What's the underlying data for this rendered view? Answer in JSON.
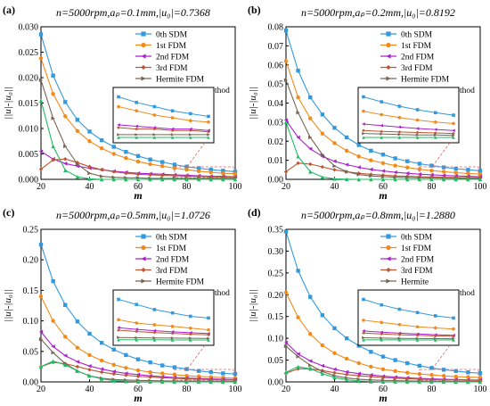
{
  "chart_data": [
    {
      "type": "line",
      "panel_label": "(a)",
      "title": "n=5000rpm,aₚ=0.1mm,|u₀|=0.7368",
      "xlabel": "m",
      "ylabel": "||u|-|u₀||",
      "xlim": [
        20,
        100
      ],
      "ylim": [
        0,
        0.03
      ],
      "xticks": [
        "20",
        "40",
        "60",
        "80",
        "100"
      ],
      "yticks": [
        "0.000",
        "0.005",
        "0.010",
        "0.015",
        "0.020",
        "0.025",
        "0.030"
      ],
      "legend_position": "top-right",
      "x": [
        20,
        25,
        30,
        35,
        40,
        45,
        50,
        55,
        60,
        65,
        70,
        75,
        80,
        85,
        90,
        95,
        100
      ],
      "series": [
        {
          "name": "0th SDM",
          "color": "#3399dd",
          "marker": "square",
          "values": [
            0.0285,
            0.0204,
            0.0152,
            0.0117,
            0.0094,
            0.0077,
            0.0064,
            0.0054,
            0.0046,
            0.0039,
            0.0034,
            0.0029,
            0.0025,
            0.0022,
            0.0019,
            0.0017,
            0.0015
          ]
        },
        {
          "name": "1st FDM",
          "color": "#f08a1a",
          "marker": "circle",
          "values": [
            0.0238,
            0.0168,
            0.0124,
            0.0095,
            0.0075,
            0.0061,
            0.005,
            0.0042,
            0.0035,
            0.003,
            0.0026,
            0.0022,
            0.0019,
            0.0016,
            0.0014,
            0.0012,
            0.0011
          ]
        },
        {
          "name": "2nd FDM",
          "color": "#aa22cc",
          "marker": "triangle-left",
          "values": [
            0.0055,
            0.004,
            0.0031,
            0.0026,
            0.0022,
            0.0019,
            0.0016,
            0.0014,
            0.0012,
            0.0011,
            0.001,
            0.0009,
            0.0008,
            0.0007,
            0.0006,
            0.0006,
            0.0005
          ]
        },
        {
          "name": "3rd FDM",
          "color": "#bb5533",
          "marker": "diamond",
          "values": [
            0.002,
            0.0038,
            0.004,
            0.0033,
            0.0025,
            0.0019,
            0.0015,
            0.0012,
            0.001,
            0.0009,
            0.0008,
            0.0007,
            0.0006,
            0.0006,
            0.0005,
            0.0005,
            0.0004
          ]
        },
        {
          "name": "Hermite FDM",
          "color": "#776655",
          "marker": "triangle-right",
          "values": [
            0.0195,
            0.012,
            0.0065,
            0.003,
            0.0012,
            0.0006,
            0.0004,
            0.0003,
            0.0003,
            0.0002,
            0.0002,
            0.0002,
            0.0002,
            0.0002,
            0.0002,
            0.0002,
            0.0002
          ]
        },
        {
          "name": "The proposed method",
          "color": "#22bb66",
          "marker": "triangle-up",
          "values": [
            0.0155,
            0.0065,
            0.0018,
            0.0005,
            0.0001,
            0.0,
            0.0,
            0.0,
            0.0,
            0.0,
            0.0,
            0.0,
            0.0,
            0.0,
            0.0,
            0.0,
            0.0
          ]
        }
      ]
    },
    {
      "type": "line",
      "panel_label": "(b)",
      "title": "n=5000rpm,aₚ=0.2mm,|u₀|=0.8192",
      "xlabel": "m",
      "ylabel": "||u|-|u₀||",
      "xlim": [
        20,
        100
      ],
      "ylim": [
        0,
        0.08
      ],
      "xticks": [
        "20",
        "40",
        "60",
        "80",
        "100"
      ],
      "yticks": [
        "0.00",
        "0.01",
        "0.02",
        "0.03",
        "0.04",
        "0.05",
        "0.06",
        "0.07",
        "0.08"
      ],
      "legend_position": "top-right",
      "x": [
        20,
        25,
        30,
        35,
        40,
        45,
        50,
        55,
        60,
        65,
        70,
        75,
        80,
        85,
        90,
        95,
        100
      ],
      "series": [
        {
          "name": "0th SDM",
          "color": "#3399dd",
          "marker": "square",
          "values": [
            0.078,
            0.057,
            0.043,
            0.034,
            0.027,
            0.022,
            0.018,
            0.015,
            0.013,
            0.011,
            0.0095,
            0.0082,
            0.0072,
            0.0063,
            0.0056,
            0.005,
            0.0045
          ]
        },
        {
          "name": "1st FDM",
          "color": "#f08a1a",
          "marker": "circle",
          "values": [
            0.062,
            0.043,
            0.032,
            0.024,
            0.019,
            0.015,
            0.012,
            0.01,
            0.0085,
            0.0072,
            0.0062,
            0.0053,
            0.0046,
            0.004,
            0.0035,
            0.0031,
            0.0028
          ]
        },
        {
          "name": "2nd FDM",
          "color": "#aa22cc",
          "marker": "triangle-left",
          "values": [
            0.031,
            0.022,
            0.016,
            0.012,
            0.0095,
            0.0077,
            0.0063,
            0.0052,
            0.0044,
            0.0037,
            0.0032,
            0.0027,
            0.0024,
            0.0021,
            0.0018,
            0.0016,
            0.0014
          ]
        },
        {
          "name": "3rd FDM",
          "color": "#bb5533",
          "marker": "diamond",
          "values": [
            0.004,
            0.0085,
            0.008,
            0.0065,
            0.005,
            0.004,
            0.0032,
            0.0026,
            0.0022,
            0.0018,
            0.0016,
            0.0014,
            0.0012,
            0.0011,
            0.001,
            0.0009,
            0.0008
          ]
        },
        {
          "name": "Hermite FDM",
          "color": "#776655",
          "marker": "triangle-right",
          "values": [
            0.052,
            0.035,
            0.022,
            0.013,
            0.007,
            0.004,
            0.0025,
            0.0018,
            0.0014,
            0.0011,
            0.0009,
            0.0008,
            0.0007,
            0.0006,
            0.0005,
            0.0005,
            0.0004
          ]
        },
        {
          "name": "The proposed method",
          "color": "#22bb66",
          "marker": "triangle-up",
          "values": [
            0.03,
            0.012,
            0.004,
            0.0012,
            0.0003,
            0.0001,
            0.0,
            0.0,
            0.0,
            0.0,
            0.0,
            0.0,
            0.0,
            0.0,
            0.0,
            0.0,
            0.0
          ]
        }
      ]
    },
    {
      "type": "line",
      "panel_label": "(c)",
      "title": "n=5000rpm,aₚ=0.5mm,|u₀|=1.0726",
      "xlabel": "m",
      "ylabel": "||u|-|u₀||",
      "xlim": [
        20,
        100
      ],
      "ylim": [
        0,
        0.25
      ],
      "xticks": [
        "20",
        "40",
        "60",
        "80",
        "100"
      ],
      "yticks": [
        "0.00",
        "0.05",
        "0.10",
        "0.15",
        "0.20",
        "0.25"
      ],
      "legend_position": "top-right",
      "x": [
        20,
        25,
        30,
        35,
        40,
        45,
        50,
        55,
        60,
        65,
        70,
        75,
        80,
        85,
        90,
        95,
        100
      ],
      "series": [
        {
          "name": "0th SDM",
          "color": "#3399dd",
          "marker": "square",
          "values": [
            0.225,
            0.165,
            0.126,
            0.099,
            0.079,
            0.064,
            0.053,
            0.044,
            0.037,
            0.032,
            0.027,
            0.024,
            0.021,
            0.018,
            0.016,
            0.014,
            0.013
          ]
        },
        {
          "name": "1st FDM",
          "color": "#f08a1a",
          "marker": "circle",
          "values": [
            0.14,
            0.1,
            0.074,
            0.056,
            0.044,
            0.035,
            0.028,
            0.023,
            0.019,
            0.016,
            0.014,
            0.012,
            0.01,
            0.009,
            0.008,
            0.007,
            0.006
          ]
        },
        {
          "name": "2nd FDM",
          "color": "#aa22cc",
          "marker": "triangle-left",
          "values": [
            0.082,
            0.058,
            0.043,
            0.033,
            0.026,
            0.021,
            0.017,
            0.014,
            0.012,
            0.01,
            0.0085,
            0.0073,
            0.0063,
            0.0055,
            0.0048,
            0.0043,
            0.0038
          ]
        },
        {
          "name": "3rd FDM",
          "color": "#bb5533",
          "marker": "diamond",
          "values": [
            0.025,
            0.032,
            0.03,
            0.025,
            0.02,
            0.016,
            0.013,
            0.011,
            0.009,
            0.008,
            0.0068,
            0.0058,
            0.005,
            0.0044,
            0.0039,
            0.0034,
            0.003
          ]
        },
        {
          "name": "Hermite FDM",
          "color": "#776655",
          "marker": "triangle-right",
          "values": [
            0.07,
            0.048,
            0.03,
            0.018,
            0.01,
            0.006,
            0.004,
            0.003,
            0.0025,
            0.002,
            0.0017,
            0.0015,
            0.0013,
            0.0012,
            0.0011,
            0.001,
            0.0009
          ]
        },
        {
          "name": "The proposed method",
          "color": "#22bb66",
          "marker": "triangle-up",
          "values": [
            0.025,
            0.034,
            0.028,
            0.018,
            0.01,
            0.005,
            0.002,
            0.001,
            0.0005,
            0.0003,
            0.0002,
            0.0001,
            0.0001,
            0.0001,
            0.0,
            0.0,
            0.0
          ]
        }
      ]
    },
    {
      "type": "line",
      "panel_label": "(d)",
      "title": "n=5000rpm,aₚ=0.8mm,|u₀|=1.2880",
      "xlabel": "m",
      "ylabel": "||u|-|u₀||",
      "xlim": [
        20,
        100
      ],
      "ylim": [
        0,
        0.35
      ],
      "xticks": [
        "20",
        "40",
        "60",
        "80",
        "100"
      ],
      "yticks": [
        "0.00",
        "0.05",
        "0.10",
        "0.15",
        "0.20",
        "0.25",
        "0.30",
        "0.35"
      ],
      "legend_position": "top-right",
      "x": [
        20,
        25,
        30,
        35,
        40,
        45,
        50,
        55,
        60,
        65,
        70,
        75,
        80,
        85,
        90,
        95,
        100
      ],
      "series": [
        {
          "name": "0th SDM",
          "color": "#3399dd",
          "marker": "square",
          "values": [
            0.345,
            0.255,
            0.195,
            0.153,
            0.123,
            0.1,
            0.083,
            0.069,
            0.058,
            0.05,
            0.043,
            0.037,
            0.032,
            0.028,
            0.025,
            0.022,
            0.02
          ]
        },
        {
          "name": "1st FDM",
          "color": "#f08a1a",
          "marker": "circle",
          "values": [
            0.205,
            0.148,
            0.11,
            0.084,
            0.066,
            0.053,
            0.043,
            0.035,
            0.029,
            0.025,
            0.021,
            0.018,
            0.016,
            0.014,
            0.012,
            0.011,
            0.01
          ]
        },
        {
          "name": "2nd FDM",
          "color": "#aa22cc",
          "marker": "triangle-left",
          "values": [
            0.09,
            0.064,
            0.048,
            0.037,
            0.029,
            0.023,
            0.019,
            0.016,
            0.013,
            0.011,
            0.0095,
            0.0082,
            0.0071,
            0.0062,
            0.0055,
            0.0048,
            0.0043
          ]
        },
        {
          "name": "3rd FDM",
          "color": "#bb5533",
          "marker": "diamond",
          "values": [
            0.02,
            0.03,
            0.03,
            0.026,
            0.021,
            0.017,
            0.014,
            0.012,
            0.01,
            0.0085,
            0.0073,
            0.0063,
            0.0055,
            0.0048,
            0.0042,
            0.0037,
            0.0033
          ]
        },
        {
          "name": "Hermite",
          "color": "#776655",
          "marker": "triangle-right",
          "values": [
            0.082,
            0.058,
            0.038,
            0.024,
            0.014,
            0.009,
            0.006,
            0.0045,
            0.0035,
            0.0028,
            0.0023,
            0.002,
            0.0017,
            0.0015,
            0.0013,
            0.0012,
            0.0011
          ]
        },
        {
          "name": "The proposed method",
          "color": "#22bb66",
          "marker": "triangle-up",
          "values": [
            0.022,
            0.035,
            0.03,
            0.019,
            0.01,
            0.005,
            0.002,
            0.001,
            0.0005,
            0.0003,
            0.0002,
            0.0001,
            0.0001,
            0.0001,
            0.0,
            0.0,
            0.0
          ]
        }
      ]
    }
  ]
}
